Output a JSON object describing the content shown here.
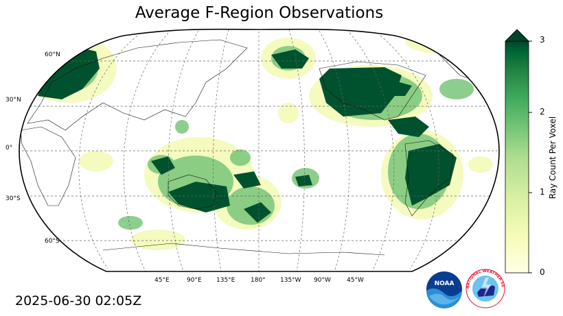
{
  "title": "Average F-Region Observations",
  "timestamp": "2025-06-30 02:05Z",
  "map": {
    "projection": "Robinson",
    "central_longitude": 180,
    "lat_labels": [
      "60°N",
      "30°N",
      "0°",
      "30°S",
      "60°S"
    ],
    "lon_labels": [
      "45°E",
      "90°E",
      "135°E",
      "180°",
      "135°W",
      "90°W",
      "45°W"
    ],
    "gridlines": true
  },
  "colorbar": {
    "label": "Ray Count Per Voxel",
    "ticks": [
      "0",
      "1",
      "2",
      "3"
    ],
    "range": [
      0,
      3
    ],
    "extend": "max",
    "colormap": "YlGn",
    "colors": {
      "low": "#ffffe5",
      "mid": "#78c679",
      "high": "#004529"
    }
  },
  "logos": {
    "noaa": {
      "text": "NOAA",
      "color": "#1a6fb5"
    },
    "nws": {
      "text": "NATIONAL WEATHER SERVICE",
      "color": "#e8102e"
    }
  }
}
